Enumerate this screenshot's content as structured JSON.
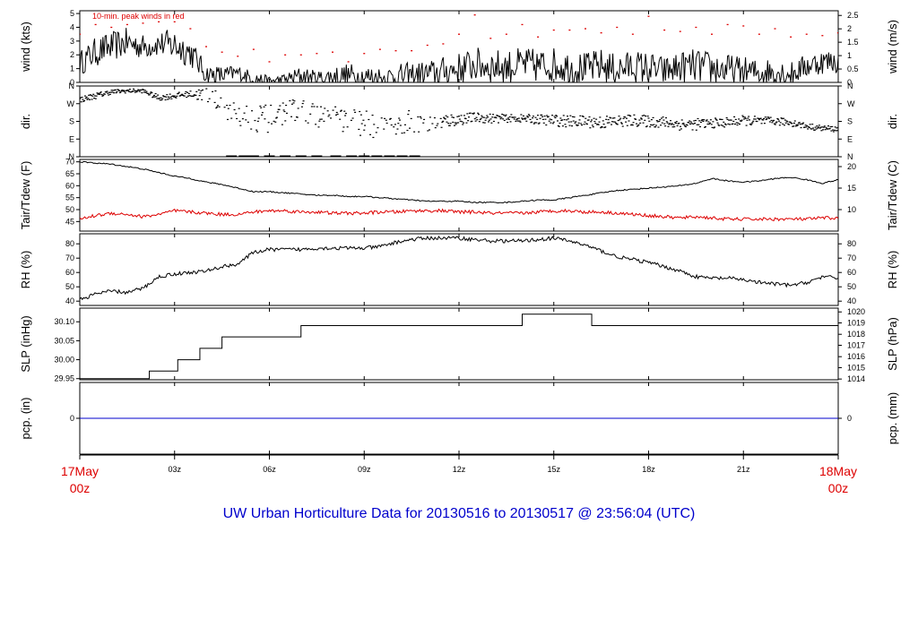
{
  "title": "UW Urban Horticulture Data for 20130516  to  20130517 @ 23:56:04  (UTC)",
  "title_color": "#0000cc",
  "colors": {
    "primary": "#000000",
    "peak": "#dd0000",
    "dewpoint": "#dd0000",
    "precip": "#0000cc",
    "date_label": "#dd0000"
  },
  "x_axis": {
    "unit": "hours UTC",
    "range": [
      0,
      24
    ],
    "ticks": [
      {
        "x": 3,
        "label": "03z"
      },
      {
        "x": 6,
        "label": "06z"
      },
      {
        "x": 9,
        "label": "09z"
      },
      {
        "x": 12,
        "label": "12z"
      },
      {
        "x": 15,
        "label": "15z"
      },
      {
        "x": 18,
        "label": "18z"
      },
      {
        "x": 21,
        "label": "21z"
      }
    ],
    "start_label": [
      "17May",
      "00z"
    ],
    "end_label": [
      "18May",
      "00z"
    ]
  },
  "chart_data": [
    {
      "type": "line",
      "panel": "wind",
      "ylabel": "wind (kts)",
      "ylabel_right": "wind (m/s)",
      "ylim": [
        0,
        5.2
      ],
      "yticks": [
        0,
        1,
        2,
        3,
        4,
        5
      ],
      "yticks_right": [
        {
          "value": 0,
          "label": "0"
        },
        {
          "value": 0.972,
          "label": "0.5"
        },
        {
          "value": 1.944,
          "label": "1"
        },
        {
          "value": 2.916,
          "label": "1.5"
        },
        {
          "value": 3.888,
          "label": "2"
        },
        {
          "value": 4.86,
          "label": "2.5"
        }
      ],
      "annotation": "10-min. peak winds in red",
      "series": [
        {
          "role": "wind",
          "color": "#000000",
          "x": [
            0,
            0.5,
            1,
            1.5,
            2,
            2.5,
            3,
            3.5,
            4,
            4.5,
            5,
            5.5,
            6,
            6.5,
            7,
            7.5,
            8,
            8.5,
            9,
            9.5,
            10,
            10.5,
            11,
            11.5,
            12,
            12.5,
            13,
            13.5,
            14,
            14.5,
            15,
            15.5,
            16,
            16.5,
            17,
            17.5,
            18,
            18.5,
            19,
            19.5,
            20,
            20.5,
            21,
            21.5,
            22,
            22.5,
            23,
            23.5,
            24
          ],
          "y": [
            1.4,
            2.2,
            2.6,
            2.9,
            2.6,
            2.8,
            2.7,
            2.2,
            0.6,
            0.5,
            0.7,
            0.3,
            0.1,
            0.2,
            0.5,
            0.3,
            0.4,
            0.5,
            0.4,
            0.3,
            0.4,
            0.5,
            0.6,
            0.8,
            1.0,
            1.3,
            1.2,
            1.1,
            1.3,
            1.2,
            1.3,
            1.1,
            1.0,
            1.2,
            0.9,
            1.2,
            1.0,
            0.8,
            1.1,
            1.2,
            1.0,
            0.9,
            0.8,
            0.7,
            0.8,
            0.6,
            1.2,
            1.5,
            1.5
          ],
          "amplitude": [
            1.0,
            1.2,
            1.2,
            1.2,
            1.0,
            1.0,
            1.4,
            1.2,
            0.8,
            0.8,
            0.6,
            0.6,
            0.4,
            0.5,
            0.8,
            0.6,
            0.9,
            1.0,
            1.0,
            1.0,
            1.0,
            1.1,
            1.1,
            1.2,
            1.3,
            1.4,
            1.4,
            1.4,
            1.4,
            1.4,
            1.4,
            1.4,
            1.3,
            1.4,
            1.3,
            1.3,
            1.4,
            1.2,
            1.3,
            1.4,
            1.4,
            1.3,
            1.2,
            1.1,
            1.2,
            1.0,
            1.0,
            1.0,
            1.0
          ]
        },
        {
          "role": "peak",
          "color": "#dd0000",
          "x": [
            0,
            0.5,
            1,
            1.5,
            2,
            2.5,
            3,
            3.5,
            4,
            4.5,
            5,
            5.5,
            6,
            6.5,
            7,
            7.5,
            8,
            8.5,
            9,
            9.5,
            10,
            10.5,
            11,
            11.5,
            12,
            12.5,
            13,
            13.5,
            14,
            14.5,
            15,
            15.5,
            16,
            16.5,
            17,
            17.5,
            18,
            18.5,
            19,
            19.5,
            20,
            20.5,
            21,
            21.5,
            22,
            22.5,
            23,
            23.5,
            24
          ],
          "y": [
            3.5,
            4.2,
            4.0,
            4.2,
            4.3,
            4.4,
            4.4,
            3.9,
            2.6,
            2.2,
            1.9,
            2.4,
            1.5,
            2.0,
            2.0,
            2.1,
            2.2,
            1.5,
            2.1,
            2.4,
            2.3,
            2.3,
            2.7,
            2.8,
            3.5,
            4.9,
            3.2,
            3.5,
            4.2,
            3.3,
            3.8,
            3.8,
            3.9,
            3.6,
            4.0,
            3.5,
            4.8,
            3.8,
            3.7,
            4.0,
            3.5,
            4.2,
            4.1,
            3.5,
            3.9,
            3.3,
            3.5,
            3.4,
            3.6
          ]
        }
      ]
    },
    {
      "type": "scatter",
      "panel": "direction",
      "ylabel": "dir.",
      "ylabel_right": "dir.",
      "ylim": [
        0,
        360
      ],
      "yticks": [
        {
          "value": 0,
          "label": "N"
        },
        {
          "value": 90,
          "label": "E"
        },
        {
          "value": 180,
          "label": "S"
        },
        {
          "value": 270,
          "label": "W"
        },
        {
          "value": 360,
          "label": "N"
        }
      ],
      "series": [
        {
          "role": "direction",
          "color": "#000000",
          "x": [
            0,
            0.5,
            1,
            1.5,
            2,
            2.5,
            3,
            3.5,
            4,
            4.5,
            5,
            5.5,
            6,
            6.5,
            7,
            7.5,
            8,
            8.5,
            9,
            9.5,
            10,
            10.5,
            11,
            11.5,
            12,
            12.5,
            13,
            13.5,
            14,
            14.5,
            15,
            15.5,
            16,
            16.5,
            17,
            17.5,
            18,
            18.5,
            19,
            19.5,
            20,
            20.5,
            21,
            21.5,
            22,
            22.5,
            23,
            23.5,
            24
          ],
          "y": [
            290,
            310,
            330,
            335,
            335,
            300,
            310,
            320,
            310,
            260,
            220,
            200,
            190,
            230,
            240,
            210,
            195,
            180,
            170,
            160,
            170,
            175,
            180,
            180,
            190,
            200,
            195,
            195,
            195,
            190,
            185,
            180,
            180,
            175,
            180,
            185,
            180,
            175,
            165,
            165,
            170,
            175,
            185,
            180,
            180,
            175,
            155,
            145,
            140
          ],
          "spread": [
            15,
            15,
            12,
            10,
            10,
            15,
            15,
            15,
            50,
            60,
            60,
            70,
            70,
            60,
            50,
            60,
            60,
            70,
            70,
            70,
            60,
            60,
            50,
            40,
            30,
            25,
            25,
            20,
            20,
            25,
            30,
            30,
            30,
            35,
            30,
            30,
            30,
            30,
            30,
            30,
            25,
            25,
            25,
            25,
            20,
            20,
            15,
            15,
            15
          ]
        }
      ]
    },
    {
      "type": "line",
      "panel": "temperature",
      "ylabel": "Tair/Tdew (F)",
      "ylabel_right": "Tair/Tdew (C)",
      "ylim": [
        41,
        71
      ],
      "yticks": [
        45,
        50,
        55,
        60,
        65,
        70
      ],
      "yticks_right": [
        {
          "value": 50,
          "label": "10"
        },
        {
          "value": 59,
          "label": "15"
        },
        {
          "value": 68,
          "label": "20"
        }
      ],
      "series": [
        {
          "role": "air_temperature",
          "color": "#000000",
          "x": [
            0,
            0.5,
            1,
            1.5,
            2,
            2.5,
            3,
            3.5,
            4,
            4.5,
            5,
            5.5,
            6,
            6.5,
            7,
            7.5,
            8,
            8.5,
            9,
            9.5,
            10,
            10.5,
            11,
            11.5,
            12,
            12.5,
            13,
            13.5,
            14,
            14.5,
            15,
            15.5,
            16,
            16.5,
            17,
            17.5,
            18,
            18.5,
            19,
            19.5,
            20,
            20.5,
            21,
            21.5,
            22,
            22.5,
            23,
            23.5,
            24
          ],
          "y": [
            70,
            69.5,
            69,
            68,
            67,
            65.5,
            64,
            63,
            61.5,
            60.5,
            59,
            57.5,
            57.5,
            57,
            56.5,
            56,
            56,
            55.5,
            55.5,
            55,
            54.5,
            54,
            53.5,
            53.5,
            53.5,
            53,
            53,
            53,
            53.5,
            54,
            54,
            55,
            56,
            57,
            58,
            58.5,
            59,
            59.5,
            60,
            61,
            63,
            62,
            61.5,
            62,
            63,
            63.5,
            62.5,
            61,
            62.5
          ]
        },
        {
          "role": "dew_point",
          "color": "#dd0000",
          "x": [
            0,
            0.5,
            1,
            1.5,
            2,
            2.5,
            3,
            3.5,
            4,
            4.5,
            5,
            5.5,
            6,
            6.5,
            7,
            7.5,
            8,
            8.5,
            9,
            9.5,
            10,
            10.5,
            11,
            11.5,
            12,
            12.5,
            13,
            13.5,
            14,
            14.5,
            15,
            15.5,
            16,
            16.5,
            17,
            17.5,
            18,
            18.5,
            19,
            19.5,
            20,
            20.5,
            21,
            21.5,
            22,
            22.5,
            23,
            23.5,
            24
          ],
          "y": [
            46,
            47.5,
            48.5,
            48,
            47,
            48,
            49.5,
            49,
            48.5,
            48,
            48,
            49,
            49.5,
            49.5,
            49,
            49,
            48.5,
            48.5,
            48.5,
            49,
            49,
            49.5,
            49.5,
            49.5,
            49,
            49,
            48.5,
            48.5,
            48.5,
            49,
            49.5,
            49.5,
            49,
            49,
            48.5,
            48,
            47.5,
            47,
            46.5,
            47,
            46.5,
            46,
            46,
            46,
            46,
            46,
            46,
            46.5,
            46.5
          ]
        }
      ]
    },
    {
      "type": "line",
      "panel": "humidity",
      "ylabel": "RH (%)",
      "ylabel_right": "RH (%)",
      "ylim": [
        37,
        87
      ],
      "yticks": [
        40,
        50,
        60,
        70,
        80
      ],
      "series": [
        {
          "role": "relative_humidity",
          "color": "#000000",
          "x": [
            0,
            0.5,
            1,
            1.5,
            2,
            2.5,
            3,
            3.5,
            4,
            4.5,
            5,
            5.5,
            6,
            6.5,
            7,
            7.5,
            8,
            8.5,
            9,
            9.5,
            10,
            10.5,
            11,
            11.5,
            12,
            12.5,
            13,
            13.5,
            14,
            14.5,
            15,
            15.5,
            16,
            16.5,
            17,
            17.5,
            18,
            18.5,
            19,
            19.5,
            20,
            20.5,
            21,
            21.5,
            22,
            22.5,
            23,
            23.5,
            24
          ],
          "y": [
            41,
            45,
            47,
            46,
            49,
            57,
            59,
            60,
            61,
            64,
            66,
            74,
            76,
            76,
            76,
            77,
            77,
            77,
            77,
            78,
            81,
            83,
            84,
            84,
            84,
            83,
            82,
            82,
            82,
            83,
            84,
            82,
            79,
            75,
            71,
            69,
            67,
            64,
            61,
            57,
            56,
            56,
            55,
            53,
            52,
            51,
            53,
            57,
            56
          ]
        }
      ]
    },
    {
      "type": "line",
      "panel": "pressure",
      "ylabel": "SLP (inHg)",
      "ylabel_right": "SLP (hPa)",
      "ylim": [
        29.947,
        30.136
      ],
      "yticks": [
        {
          "value": 29.95,
          "label": "29.95"
        },
        {
          "value": 30.0,
          "label": "30.00"
        },
        {
          "value": 30.05,
          "label": "30.05"
        },
        {
          "value": 30.1,
          "label": "30.10"
        }
      ],
      "yticks_right": [
        {
          "value": 29.949,
          "label": "1014"
        },
        {
          "value": 29.979,
          "label": "1015"
        },
        {
          "value": 30.008,
          "label": "1016"
        },
        {
          "value": 30.038,
          "label": "1017"
        },
        {
          "value": 30.067,
          "label": "1018"
        },
        {
          "value": 30.097,
          "label": "1019"
        },
        {
          "value": 30.126,
          "label": "1020"
        }
      ],
      "series": [
        {
          "role": "sea_level_pressure",
          "color": "#000000",
          "step": true,
          "x": [
            0,
            2.2,
            3.1,
            3.8,
            4.5,
            7.0,
            14.0,
            16.2,
            24
          ],
          "y": [
            29.95,
            29.97,
            30.0,
            30.03,
            30.06,
            30.09,
            30.12,
            30.09,
            30.09
          ]
        }
      ]
    },
    {
      "type": "line",
      "panel": "precipitation",
      "ylabel": "pcp. (in)",
      "ylabel_right": "pcp. (mm)",
      "ylim": [
        -1,
        1
      ],
      "yticks": [
        {
          "value": 0,
          "label": "0"
        }
      ],
      "yticks_right": [
        {
          "value": 0,
          "label": "0"
        }
      ],
      "series": [
        {
          "role": "precipitation",
          "color": "#0000cc",
          "x": [
            0,
            24
          ],
          "y": [
            0,
            0
          ]
        }
      ]
    }
  ]
}
